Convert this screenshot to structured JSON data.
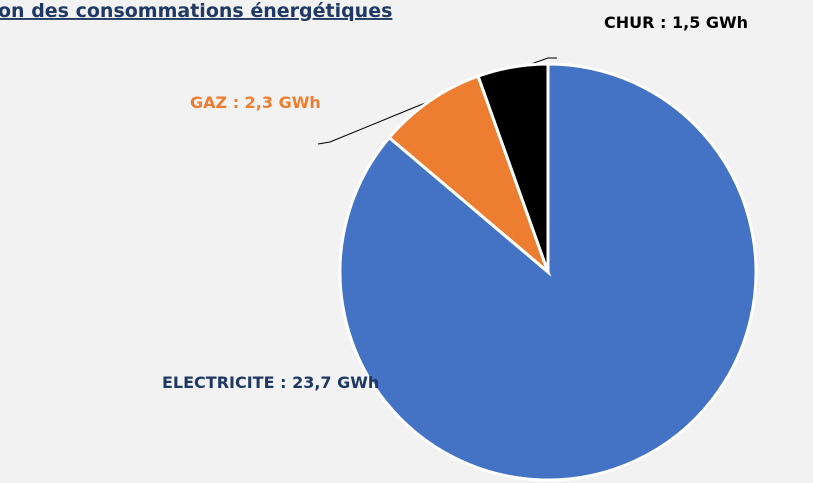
{
  "chart_data": {
    "type": "pie",
    "title": "on des consommations énergétiques",
    "values": [
      23.7,
      2.3,
      1.5
    ],
    "value_labels": [
      "ELECTRICITE : 23,7 GWh",
      "GAZ : 2,3 GWh",
      "CHUR : 1,5 GWh"
    ],
    "colors": [
      "#4472c4",
      "#ed7d31",
      "#000000"
    ]
  }
}
